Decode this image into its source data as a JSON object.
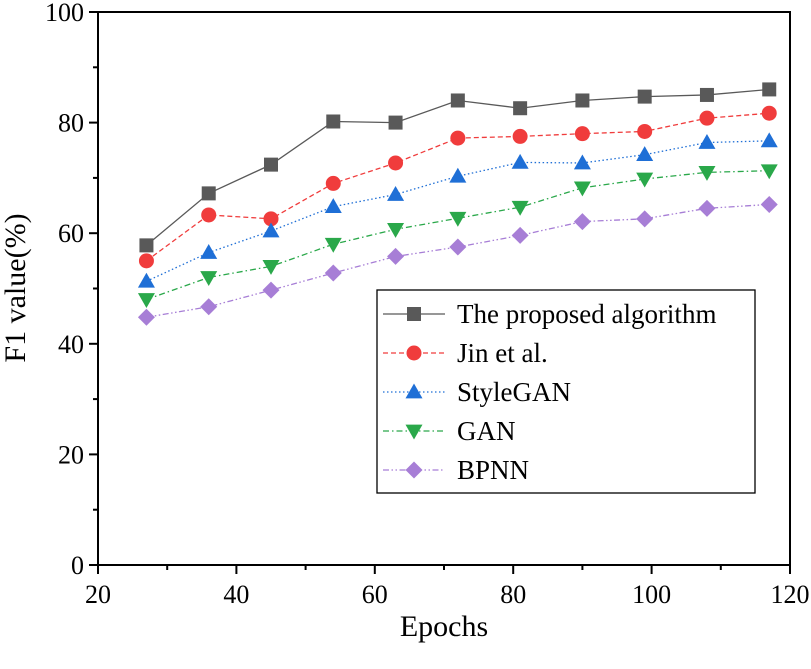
{
  "chart_data": {
    "type": "line",
    "title": "",
    "xlabel": "Epochs",
    "ylabel": "F1 value(%)",
    "xlim": [
      20,
      120
    ],
    "ylim": [
      0,
      100
    ],
    "xticks": [
      20,
      40,
      60,
      80,
      100,
      120
    ],
    "yticks": [
      0,
      20,
      40,
      60,
      80,
      100
    ],
    "grid": false,
    "legend_position": "center-right",
    "x": [
      27,
      36,
      45,
      54,
      63,
      72,
      81,
      90,
      99,
      108,
      117
    ],
    "series": [
      {
        "name": "The proposed algorithm",
        "color": "#595959",
        "marker": "square",
        "line_style": "solid",
        "values": [
          57.8,
          67.2,
          72.4,
          80.2,
          80.0,
          84.0,
          82.6,
          84.0,
          84.7,
          85.0,
          86.0
        ]
      },
      {
        "name": "Jin et al.",
        "color": "#f03c3c",
        "marker": "circle",
        "line_style": "dashed",
        "values": [
          55.0,
          63.3,
          62.6,
          69.0,
          72.7,
          77.2,
          77.5,
          78.0,
          78.4,
          80.8,
          81.7
        ]
      },
      {
        "name": "StyleGAN",
        "color": "#1f6fd6",
        "marker": "triangle-up",
        "line_style": "dotted",
        "values": [
          51.3,
          56.5,
          60.4,
          64.8,
          67.0,
          70.3,
          72.8,
          72.7,
          74.2,
          76.4,
          76.7
        ]
      },
      {
        "name": "GAN",
        "color": "#2aa84a",
        "marker": "triangle-down",
        "line_style": "dashdot",
        "values": [
          48.0,
          52.0,
          54.0,
          58.0,
          60.7,
          62.7,
          64.7,
          68.2,
          69.8,
          71.0,
          71.3
        ]
      },
      {
        "name": "BPNN",
        "color": "#a77ed6",
        "marker": "diamond",
        "line_style": "dashdotdot",
        "values": [
          44.8,
          46.7,
          49.7,
          52.8,
          55.8,
          57.5,
          59.6,
          62.1,
          62.6,
          64.5,
          65.2
        ]
      }
    ],
    "legend_labels": [
      "The proposed algorithm",
      "Jin et al.",
      "StyleGAN",
      "GAN",
      "BPNN"
    ]
  }
}
